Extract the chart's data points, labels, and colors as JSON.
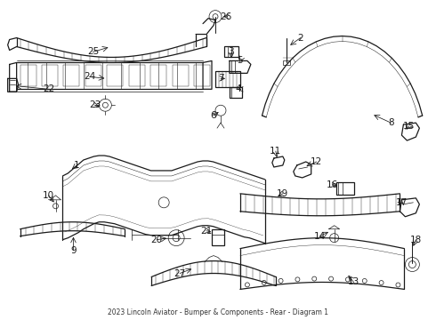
{
  "bg_color": "#ffffff",
  "line_color": "#1a1a1a",
  "fig_width": 4.9,
  "fig_height": 3.6,
  "dpi": 100,
  "title": "2023 Lincoln Aviator - Bumper & Components - Rear - Diagram 1",
  "title_fontsize": 5.5,
  "label_fontsize": 7.5,
  "arrow_color": "#1a1a1a",
  "lw_main": 0.9,
  "lw_thin": 0.5,
  "lw_hatch": 0.3
}
